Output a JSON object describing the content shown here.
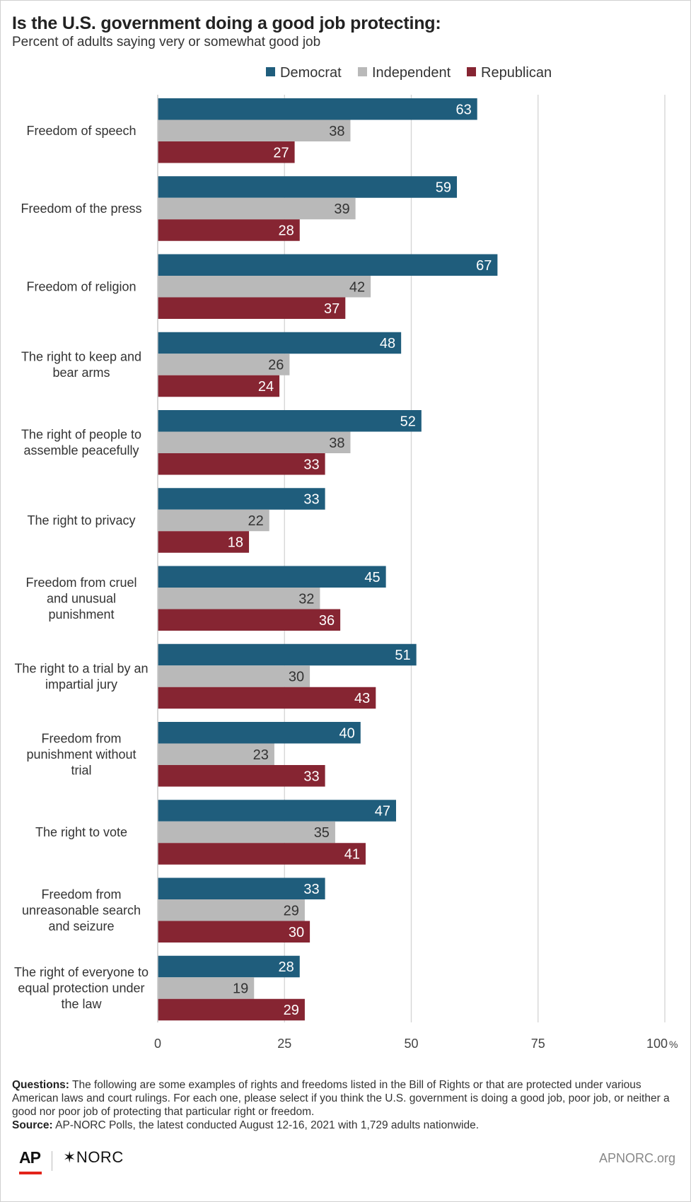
{
  "title": "Is the U.S. government doing a good job protecting:",
  "subtitle": "Percent of adults saying very or somewhat good job",
  "legend": [
    {
      "label": "Democrat",
      "color": "#1f5d7c"
    },
    {
      "label": "Independent",
      "color": "#b9b9b9"
    },
    {
      "label": "Republican",
      "color": "#862532"
    }
  ],
  "chart_data": {
    "type": "bar",
    "orientation": "horizontal",
    "title": "Is the U.S. government doing a good job protecting:",
    "subtitle": "Percent of adults saying very or somewhat good job",
    "categories": [
      "Freedom of speech",
      "Freedom of the press",
      "Freedom of religion",
      "The right to keep and bear arms",
      "The right of people to assemble peacefully",
      "The right to privacy",
      "Freedom from cruel and unusual punishment",
      "The right to a trial by an impartial jury",
      "Freedom from punishment without trial",
      "The right to vote",
      "Freedom from unreasonable search and seizure",
      "The right of everyone to equal protection under the law"
    ],
    "category_lines": [
      [
        "Freedom of speech"
      ],
      [
        "Freedom of the press"
      ],
      [
        "Freedom of religion"
      ],
      [
        "The right to keep and",
        "bear arms"
      ],
      [
        "The right of people to",
        "assemble peacefully"
      ],
      [
        "The right to privacy"
      ],
      [
        "Freedom from cruel",
        "and unusual",
        "punishment"
      ],
      [
        "The right to a trial by an",
        "impartial jury"
      ],
      [
        "Freedom from",
        "punishment without",
        "trial"
      ],
      [
        "The right to vote"
      ],
      [
        "Freedom from",
        "unreasonable search",
        "and seizure"
      ],
      [
        "The right of everyone to",
        "equal protection under",
        "the law"
      ]
    ],
    "series": [
      {
        "name": "Democrat",
        "color": "#1f5d7c",
        "label_color": "#ffffff",
        "values": [
          63,
          59,
          67,
          48,
          52,
          33,
          45,
          51,
          40,
          47,
          33,
          28
        ]
      },
      {
        "name": "Independent",
        "color": "#b9b9b9",
        "label_color": "#333333",
        "values": [
          38,
          39,
          42,
          26,
          38,
          22,
          32,
          30,
          23,
          35,
          29,
          19
        ]
      },
      {
        "name": "Republican",
        "color": "#862532",
        "label_color": "#ffffff",
        "values": [
          27,
          28,
          37,
          24,
          33,
          18,
          36,
          43,
          33,
          41,
          30,
          29
        ]
      }
    ],
    "x_ticks": [
      "0",
      "25",
      "50",
      "75",
      "100"
    ],
    "x_tick_values": [
      0,
      25,
      50,
      75,
      100
    ],
    "x_unit": "%",
    "xlim": [
      0,
      100
    ],
    "grid": true,
    "legend_position": "top-right"
  },
  "notes": {
    "questions_label": "Questions:",
    "questions_text": " The following are some examples of rights and freedoms listed in the Bill of Rights or that are protected under various American laws and court rulings. For each one, please select if you think the U.S. government is doing a good job, poor job, or neither a good nor poor job of protecting that particular right or freedom.",
    "source_label": "Source:",
    "source_text": " AP-NORC Polls, the latest conducted August 12-16, 2021 with 1,729 adults nationwide."
  },
  "footer": {
    "ap_logo": "AP",
    "norc_logo": "✶NORC",
    "site": "APNORC.org"
  }
}
